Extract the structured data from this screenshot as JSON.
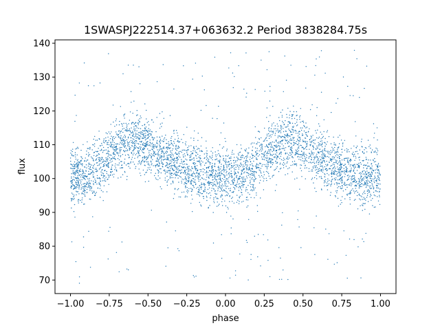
{
  "chart_data": {
    "type": "scatter",
    "title": "1SWASPJ222514.37+063632.2 Period 3838284.75s",
    "xlabel": "phase",
    "ylabel": "flux",
    "xlim": [
      -1.1,
      1.1
    ],
    "ylim": [
      66,
      141
    ],
    "xticks": [
      -1.0,
      -0.75,
      -0.5,
      -0.25,
      0.0,
      0.25,
      0.5,
      0.75,
      1.0
    ],
    "xtick_labels": [
      "−1.00",
      "−0.75",
      "−0.50",
      "−0.25",
      "0.00",
      "0.25",
      "0.50",
      "0.75",
      "1.00"
    ],
    "yticks": [
      70,
      80,
      90,
      100,
      110,
      120,
      130,
      140
    ],
    "ytick_labels": [
      "70",
      "80",
      "90",
      "100",
      "110",
      "120",
      "130",
      "140"
    ],
    "grid": false,
    "point_color": "#1f77b4",
    "series": [
      {
        "phase_trend": [
          [
            -1.0,
            101
          ],
          [
            -0.9,
            101
          ],
          [
            -0.8,
            104
          ],
          [
            -0.7,
            109
          ],
          [
            -0.6,
            112
          ],
          [
            -0.5,
            110
          ],
          [
            -0.4,
            106
          ],
          [
            -0.3,
            104
          ],
          [
            -0.2,
            102
          ],
          [
            -0.1,
            100
          ],
          [
            0.0,
            101
          ],
          [
            0.1,
            101
          ],
          [
            0.2,
            104
          ],
          [
            0.3,
            109
          ],
          [
            0.4,
            112
          ],
          [
            0.5,
            110
          ],
          [
            0.6,
            106
          ],
          [
            0.7,
            104
          ],
          [
            0.8,
            102
          ],
          [
            0.9,
            100
          ],
          [
            1.0,
            101
          ]
        ],
        "scatter_width": 7,
        "outlier_range": [
          69,
          138
        ]
      }
    ]
  }
}
